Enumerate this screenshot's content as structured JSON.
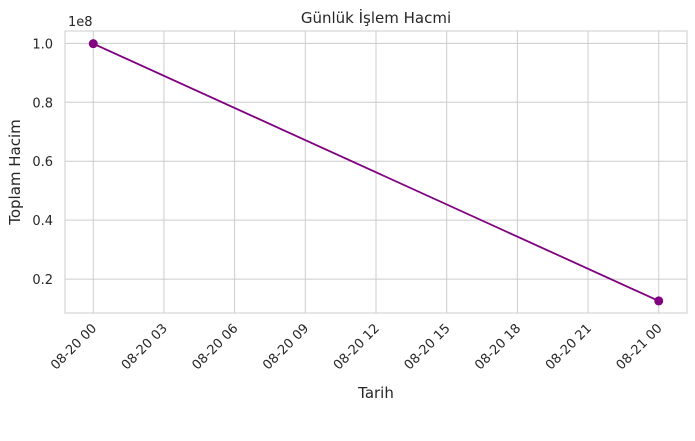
{
  "chart_data": {
    "type": "line",
    "title": "Günlük İşlem Hacmi",
    "xlabel": "Tarih",
    "ylabel": "Toplam Hacim",
    "y_offset_text": "1e8",
    "x": [
      "2024-08-20 00:00",
      "2024-08-21 00:00"
    ],
    "y": [
      99900000,
      12600000
    ],
    "y_scale_factor": 100000000,
    "xlim": [
      "2024-08-19 22:48",
      "2024-08-21 01:12"
    ],
    "ylim": [
      8500000,
      104200000
    ],
    "x_ticks": [
      {
        "value": "2024-08-20 00:00",
        "label": "08-20 00"
      },
      {
        "value": "2024-08-20 03:00",
        "label": "08-20 03"
      },
      {
        "value": "2024-08-20 06:00",
        "label": "08-20 06"
      },
      {
        "value": "2024-08-20 09:00",
        "label": "08-20 09"
      },
      {
        "value": "2024-08-20 12:00",
        "label": "08-20 12"
      },
      {
        "value": "2024-08-20 15:00",
        "label": "08-20 15"
      },
      {
        "value": "2024-08-20 18:00",
        "label": "08-20 18"
      },
      {
        "value": "2024-08-20 21:00",
        "label": "08-20 21"
      },
      {
        "value": "2024-08-21 00:00",
        "label": "08-21 00"
      }
    ],
    "y_ticks": [
      {
        "value": 20000000,
        "label": "0.2"
      },
      {
        "value": 40000000,
        "label": "0.4"
      },
      {
        "value": 60000000,
        "label": "0.6"
      },
      {
        "value": 80000000,
        "label": "0.8"
      },
      {
        "value": 100000000,
        "label": "1.0"
      }
    ],
    "grid": true,
    "line_color": "#800080",
    "marker": "circle",
    "grid_color": "#cccccc",
    "axes_edge_color": "#cccccc"
  }
}
